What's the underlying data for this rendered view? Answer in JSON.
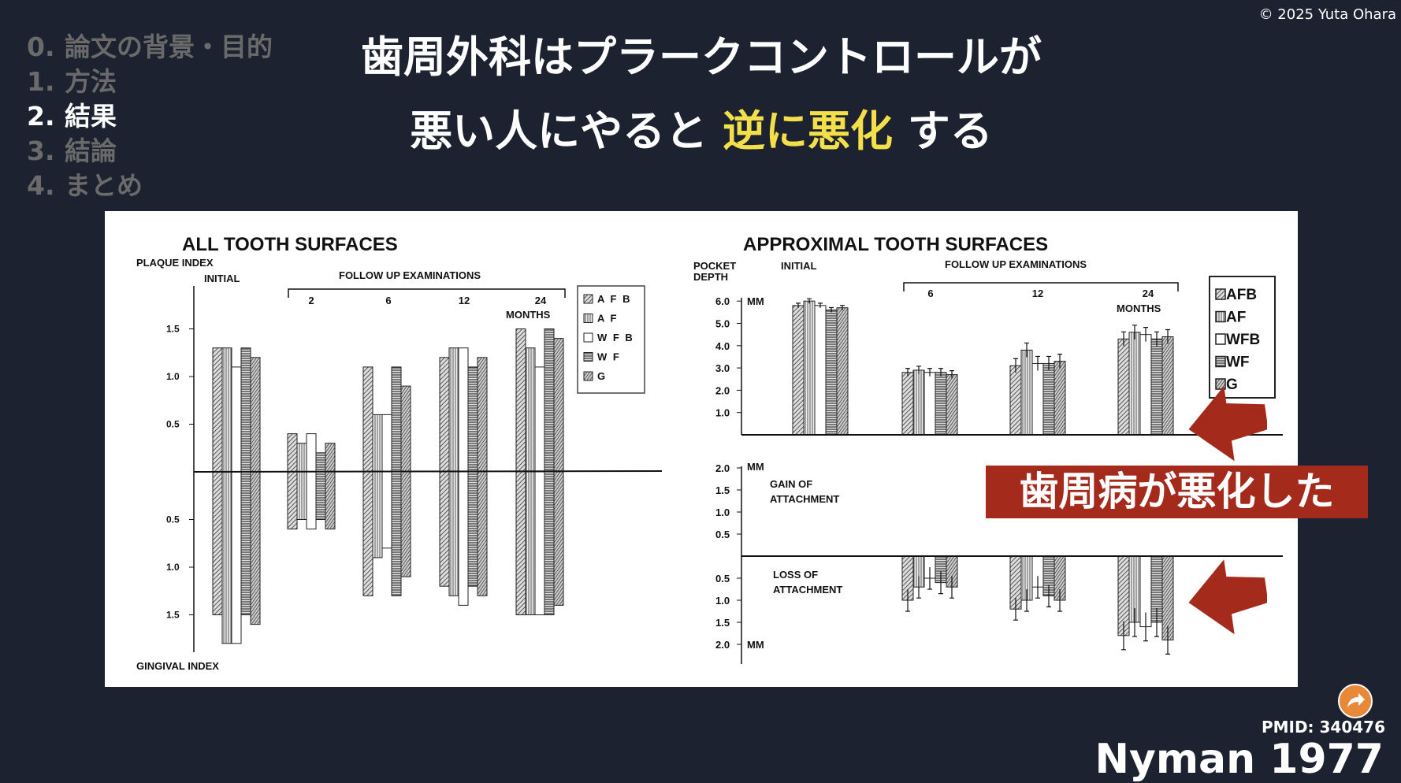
{
  "copyright": "© 2025 Yuta Ohara",
  "nav": {
    "items": [
      {
        "num": "0.",
        "label": "論文の背景・目的",
        "active": false
      },
      {
        "num": "1.",
        "label": "方法",
        "active": false
      },
      {
        "num": "2.",
        "label": "結果",
        "active": true
      },
      {
        "num": "3.",
        "label": "結論",
        "active": false
      },
      {
        "num": "4.",
        "label": "まとめ",
        "active": false
      }
    ]
  },
  "title": {
    "line1": "歯周外科はプラークコントロールが",
    "line2_pre": "悪い人にやると ",
    "line2_highlight": "逆に悪化",
    "line2_post": " する"
  },
  "colors": {
    "background": "#1d2230",
    "highlight": "#f3df4a",
    "callout": "#a42a1c",
    "share": "#e8893a",
    "nav_inactive": "#6a6a6a"
  },
  "callout": "歯周病が悪化した",
  "icons": {
    "share": "share-arrow-icon",
    "pointer": "red-arrow-left-icon"
  },
  "citation": {
    "pmid": "PMID: 340476",
    "reference": "Nyman 1977"
  },
  "chart_data": [
    {
      "type": "bar",
      "title": "ALL TOOTH SURFACES",
      "ylabel_top": "PLAQUE INDEX",
      "ylabel_bottom": "GINGIVAL INDEX",
      "initial_label": "INITIAL",
      "followup_label": "FOLLOW UP EXAMINATIONS",
      "months_label": "MONTHS",
      "categories": [
        "INITIAL",
        "2",
        "6",
        "12",
        "24"
      ],
      "ticks": [
        "1.5",
        "1.0",
        "0.5",
        "0.5",
        "1.0",
        "1.5"
      ],
      "ylim": [
        -1.8,
        1.8
      ],
      "legend": [
        "A F B",
        "A F",
        "W F B",
        "W F",
        "G"
      ],
      "series": [
        {
          "name": "AFB",
          "plaque": [
            1.3,
            0.4,
            1.1,
            1.2,
            1.5
          ],
          "gingival": [
            1.5,
            0.6,
            1.3,
            1.2,
            1.5
          ]
        },
        {
          "name": "AF",
          "plaque": [
            1.3,
            0.3,
            0.6,
            1.3,
            1.3
          ],
          "gingival": [
            1.8,
            0.5,
            0.9,
            1.3,
            1.5
          ]
        },
        {
          "name": "WFB",
          "plaque": [
            1.1,
            0.4,
            0.6,
            1.3,
            1.1
          ],
          "gingival": [
            1.8,
            0.6,
            0.8,
            1.4,
            1.5
          ]
        },
        {
          "name": "WF",
          "plaque": [
            1.3,
            0.2,
            1.1,
            1.1,
            1.5
          ],
          "gingival": [
            1.5,
            0.5,
            1.3,
            1.2,
            1.5
          ]
        },
        {
          "name": "G",
          "plaque": [
            1.2,
            0.3,
            0.9,
            1.2,
            1.4
          ],
          "gingival": [
            1.6,
            0.6,
            1.1,
            1.3,
            1.4
          ]
        }
      ]
    },
    {
      "type": "bar",
      "title": "APPROXIMAL TOOTH SURFACES",
      "ylabel_top": [
        "POCKET",
        "DEPTH"
      ],
      "unit": "MM",
      "initial_label": "INITIAL",
      "followup_label": "FOLLOW UP EXAMINATIONS",
      "months_label": "MONTHS",
      "categories": [
        "INITIAL",
        "6",
        "12",
        "24"
      ],
      "pd_ticks": [
        "6.0",
        "5.0",
        "4.0",
        "3.0",
        "2.0",
        "1.0"
      ],
      "att_ticks_up": [
        "2.0",
        "1.5",
        "1.0",
        "0.5"
      ],
      "att_ticks_down": [
        "0.5",
        "1.0",
        "1.5",
        "2.0"
      ],
      "gain_label": [
        "GAIN OF",
        "ATTACHMENT"
      ],
      "loss_label": [
        "LOSS OF",
        "ATTACHMENT"
      ],
      "pd_ylim": [
        0,
        6.0
      ],
      "att_ylim": [
        -2.0,
        2.0
      ],
      "legend": [
        "AFB",
        "AF",
        "WFB",
        "WF",
        "G"
      ],
      "series": [
        {
          "name": "AFB",
          "pocket_depth": [
            5.8,
            2.8,
            3.1,
            4.3
          ],
          "attachment_loss": [
            1.0,
            1.2,
            1.8
          ]
        },
        {
          "name": "AF",
          "pocket_depth": [
            6.0,
            2.9,
            3.8,
            4.6
          ],
          "attachment_loss": [
            0.7,
            1.0,
            1.5
          ]
        },
        {
          "name": "WFB",
          "pocket_depth": [
            5.8,
            2.8,
            3.2,
            4.5
          ],
          "attachment_loss": [
            0.5,
            0.7,
            1.6
          ]
        },
        {
          "name": "WF",
          "pocket_depth": [
            5.6,
            2.8,
            3.2,
            4.3
          ],
          "attachment_loss": [
            0.6,
            0.9,
            1.5
          ]
        },
        {
          "name": "G",
          "pocket_depth": [
            5.7,
            2.7,
            3.3,
            4.4
          ],
          "attachment_loss": [
            0.7,
            1.0,
            1.9
          ]
        }
      ]
    }
  ]
}
